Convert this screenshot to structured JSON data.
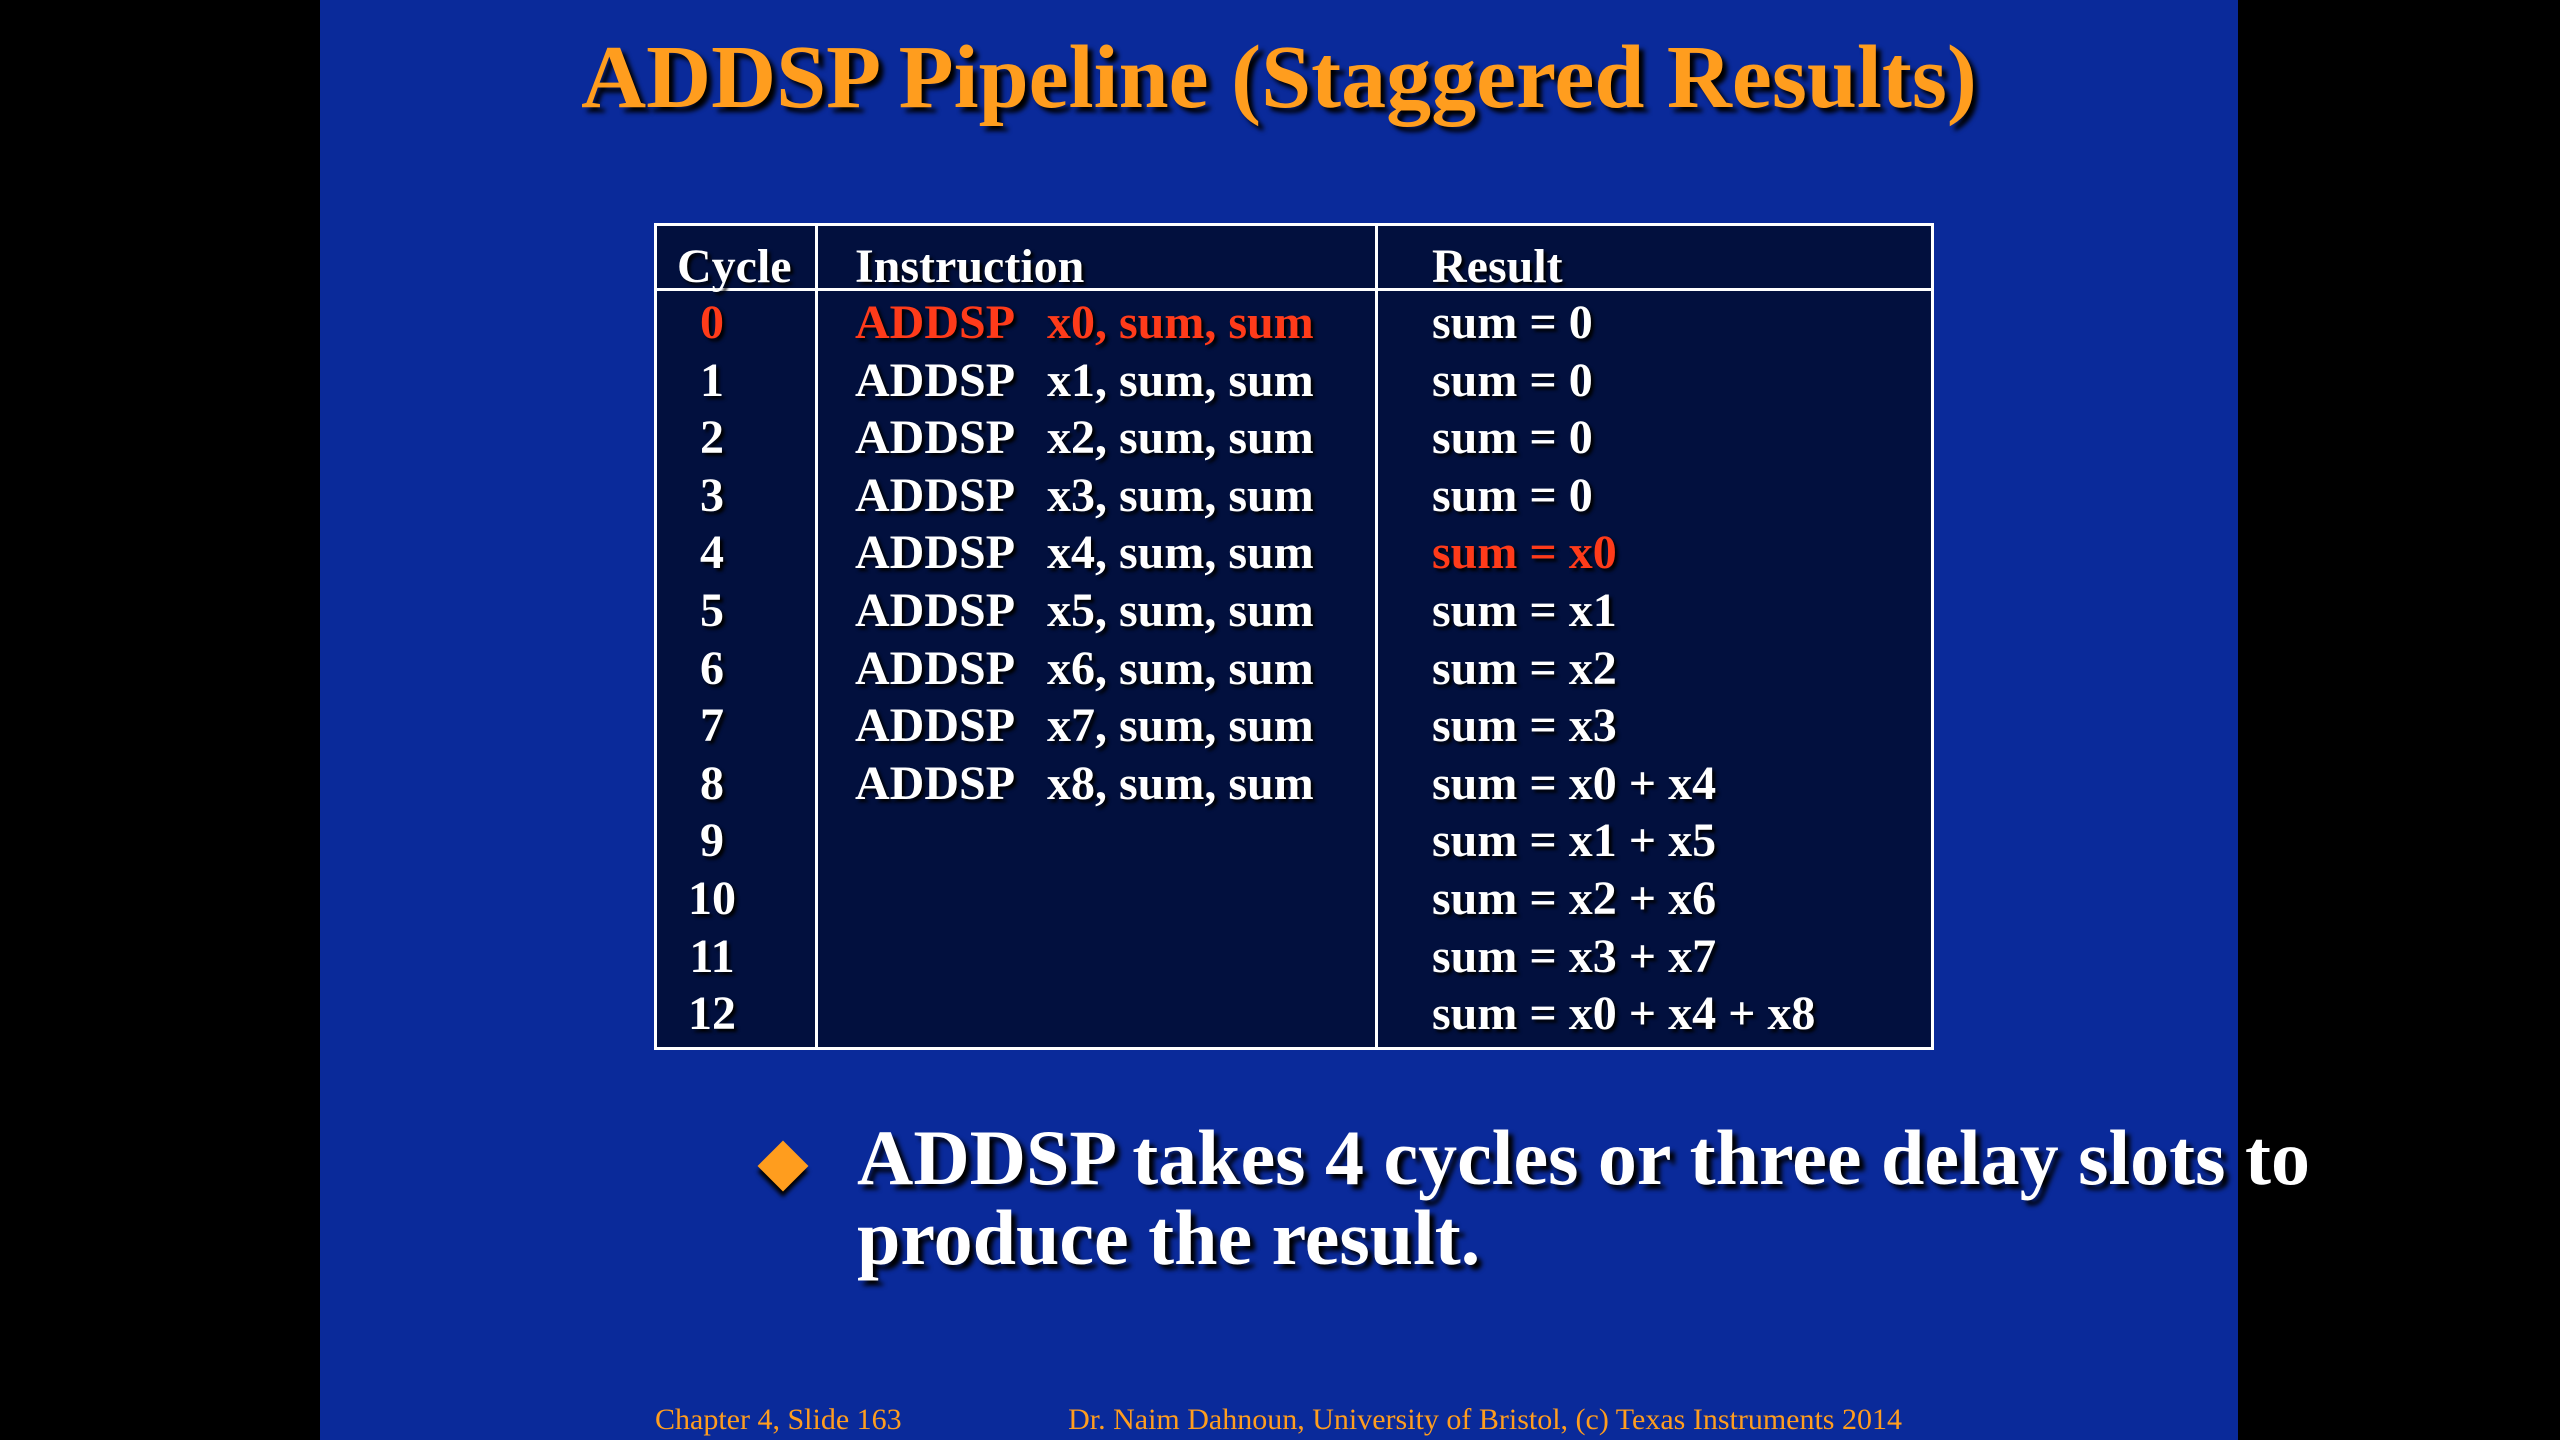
{
  "slide": {
    "title": "ADDSP Pipeline (Staggered Results)",
    "table": {
      "headers": {
        "cycle": "Cycle",
        "instruction": "Instruction",
        "result": "Result"
      },
      "rows": [
        {
          "cycle": "0",
          "op": "ADDSP",
          "args": "x0, sum, sum",
          "result": "sum = 0"
        },
        {
          "cycle": "1",
          "op": "ADDSP",
          "args": "x1, sum, sum",
          "result": "sum = 0"
        },
        {
          "cycle": "2",
          "op": "ADDSP",
          "args": "x2, sum, sum",
          "result": "sum = 0"
        },
        {
          "cycle": "3",
          "op": "ADDSP",
          "args": "x3, sum, sum",
          "result": "sum = 0"
        },
        {
          "cycle": "4",
          "op": "ADDSP",
          "args": "x4, sum, sum",
          "result": "sum = x0"
        },
        {
          "cycle": "5",
          "op": "ADDSP",
          "args": "x5, sum, sum",
          "result": "sum = x1"
        },
        {
          "cycle": "6",
          "op": "ADDSP",
          "args": "x6, sum, sum",
          "result": "sum = x2"
        },
        {
          "cycle": "7",
          "op": "ADDSP",
          "args": "x7, sum, sum",
          "result": "sum = x3"
        },
        {
          "cycle": "8",
          "op": "ADDSP",
          "args": "x8, sum, sum",
          "result": "sum = x0 + x4"
        },
        {
          "cycle": "9",
          "op": "",
          "args": "",
          "result": "sum = x1 + x5"
        },
        {
          "cycle": "10",
          "op": "",
          "args": "",
          "result": "sum = x2 + x6"
        },
        {
          "cycle": "11",
          "op": "",
          "args": "",
          "result": "sum = x3 + x7"
        },
        {
          "cycle": "12",
          "op": "",
          "args": "",
          "result": "sum = x0 + x4 + x8"
        }
      ],
      "highlight": {
        "instruction_row_index": 0,
        "result_row_index": 4,
        "color": "#ff3b1a"
      }
    },
    "bullet": {
      "icon": "diamond-bullet-icon",
      "text": "ADDSP takes 4 cycles or three delay slots to produce the result."
    },
    "footer": {
      "left": "Chapter 4, Slide 163",
      "right": "Dr. Naim Dahnoun, University of Bristol,  (c) Texas Instruments 2014"
    }
  },
  "colors": {
    "slide_background": "#0a2a9a",
    "table_background": "#02103e",
    "title": "#ff9d1e",
    "text": "#ffffff",
    "highlight": "#ff3b1a",
    "accent": "#ff9d1e"
  }
}
